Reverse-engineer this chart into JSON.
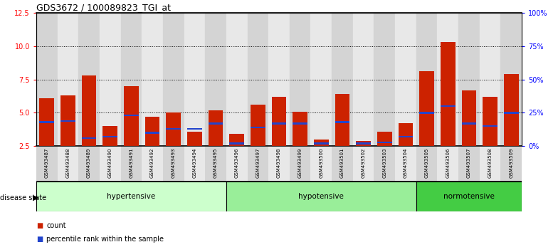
{
  "title": "GDS3672 / 100089823_TGI_at",
  "samples": [
    "GSM493487",
    "GSM493488",
    "GSM493489",
    "GSM493490",
    "GSM493491",
    "GSM493492",
    "GSM493493",
    "GSM493494",
    "GSM493495",
    "GSM493496",
    "GSM493497",
    "GSM493498",
    "GSM493499",
    "GSM493500",
    "GSM493501",
    "GSM493502",
    "GSM493503",
    "GSM493504",
    "GSM493505",
    "GSM493506",
    "GSM493507",
    "GSM493508",
    "GSM493509"
  ],
  "count_values": [
    6.1,
    6.3,
    7.8,
    4.0,
    7.0,
    4.7,
    5.0,
    3.6,
    5.2,
    3.4,
    5.6,
    6.2,
    5.1,
    3.0,
    6.4,
    2.9,
    3.6,
    4.2,
    8.1,
    10.3,
    6.7,
    6.2,
    7.9
  ],
  "percentile_values": [
    4.3,
    4.4,
    3.1,
    3.2,
    4.8,
    3.5,
    3.8,
    3.8,
    4.2,
    2.7,
    3.9,
    4.2,
    4.2,
    2.7,
    4.3,
    2.7,
    2.8,
    3.2,
    5.0,
    5.5,
    4.2,
    4.0,
    5.0
  ],
  "groups": [
    {
      "label": "hypertensive",
      "start": 0,
      "end": 9,
      "color": "#ccffcc"
    },
    {
      "label": "hypotensive",
      "start": 9,
      "end": 18,
      "color": "#99ee99"
    },
    {
      "label": "normotensive",
      "start": 18,
      "end": 23,
      "color": "#44cc44"
    }
  ],
  "ylim_left": [
    2.5,
    12.5
  ],
  "yticks_left": [
    2.5,
    5.0,
    7.5,
    10.0,
    12.5
  ],
  "ylim_right": [
    0,
    100
  ],
  "yticks_right": [
    0,
    25,
    50,
    75,
    100
  ],
  "bar_color": "#cc2200",
  "percentile_color": "#2244cc",
  "bar_width": 0.7,
  "baseline": 2.5,
  "legend_count_label": "count",
  "legend_percentile_label": "percentile rank within the sample",
  "grid_lines": [
    5.0,
    7.5,
    10.0
  ],
  "stripe_colors": [
    "#d4d4d4",
    "#e8e8e8"
  ]
}
